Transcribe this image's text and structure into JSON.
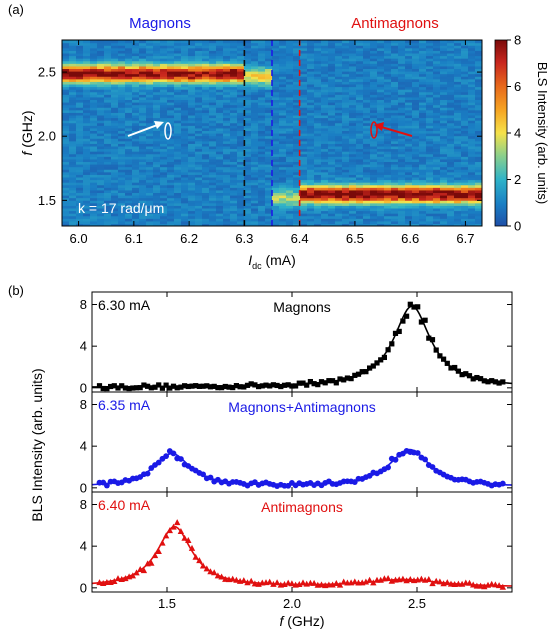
{
  "panel_a": {
    "label": "(a)",
    "region_left": "Magnons",
    "region_right": "Antimagnons",
    "wavevector": "k = 17 rad/μm",
    "colorbar_label": "BLS Intensity (arb. units)",
    "colors": {
      "magnons_text": "#1a1ae6",
      "antimagnons_text": "#e01010",
      "line_black": "#111111",
      "line_blue": "#1a1ae6",
      "line_red": "#e01010"
    }
  },
  "panel_b": {
    "label": "(b)",
    "ylabel": "BLS Intensity (arb. units)",
    "subplots": [
      {
        "current": "6.30 mA",
        "title": "Magnons",
        "color": "#000000"
      },
      {
        "current": "6.35 mA",
        "title": "Magnons+Antimagnons",
        "color": "#1a1ae6"
      },
      {
        "current": "6.40 mA",
        "title": "Antimagnons",
        "color": "#e01010"
      }
    ]
  },
  "chart_data": [
    {
      "type": "heatmap",
      "xlabel_var": "I",
      "xlabel_sub": "dc",
      "xlabel_unit": " (mA)",
      "ylabel_var": "f",
      "ylabel_unit": " (GHz)",
      "xlim": [
        5.97,
        6.73
      ],
      "ylim": [
        1.3,
        2.75
      ],
      "xticks": [
        "6.0",
        "6.1",
        "6.2",
        "6.3",
        "6.4",
        "6.5",
        "6.6",
        "6.7"
      ],
      "xtick_values": [
        6.0,
        6.1,
        6.2,
        6.3,
        6.4,
        6.5,
        6.6,
        6.7
      ],
      "yticks": [
        "1.5",
        "2.0",
        "2.5"
      ],
      "ytick_values": [
        1.5,
        2.0,
        2.5
      ],
      "colorbar": {
        "min": 0,
        "max": 8,
        "ticks": [
          "0",
          "2",
          "4",
          "6",
          "8"
        ],
        "tick_values": [
          0,
          2,
          4,
          6,
          8
        ]
      },
      "vertical_lines": [
        {
          "x": 6.3,
          "color": "#111111"
        },
        {
          "x": 6.35,
          "color": "#1a1ae6"
        },
        {
          "x": 6.4,
          "color": "#e01010"
        }
      ],
      "bands": [
        {
          "x_range": [
            5.97,
            6.3
          ],
          "f": 2.49,
          "peak": 7.2
        },
        {
          "x_range": [
            6.3,
            6.345
          ],
          "f": 2.47,
          "peak": 3.5
        },
        {
          "x_range": [
            6.345,
            6.4
          ],
          "f": 1.52,
          "peak": 2.5
        },
        {
          "x_range": [
            6.4,
            6.73
          ],
          "f": 1.55,
          "peak": 7.5
        }
      ]
    },
    {
      "type": "scatter",
      "xlim": [
        1.2,
        2.88
      ],
      "ylim": [
        -0.4,
        9.2
      ],
      "yticks": [
        "0",
        "4",
        "8"
      ],
      "ytick_values": [
        0,
        4,
        8
      ],
      "series": [
        {
          "label": "6.30 mA",
          "marker": "square",
          "peaks": [
            {
              "x": 2.48,
              "amp": 7.8,
              "width": 0.09
            }
          ]
        },
        {
          "label": "6.35 mA",
          "marker": "circle",
          "peaks": [
            {
              "x": 1.52,
              "amp": 3.2,
              "width": 0.09
            },
            {
              "x": 2.47,
              "amp": 3.6,
              "width": 0.1
            }
          ]
        },
        {
          "label": "6.40 mA",
          "marker": "triangle",
          "peaks": [
            {
              "x": 1.53,
              "amp": 5.8,
              "width": 0.085
            },
            {
              "x": 2.45,
              "amp": 0.7,
              "width": 0.18
            }
          ]
        }
      ]
    },
    {
      "type": "axis",
      "xlabel_var": "f",
      "xlabel_unit": " (GHz)",
      "xticks": [
        "1.5",
        "2.0",
        "2.5"
      ],
      "xtick_values": [
        1.5,
        2.0,
        2.5
      ]
    }
  ]
}
